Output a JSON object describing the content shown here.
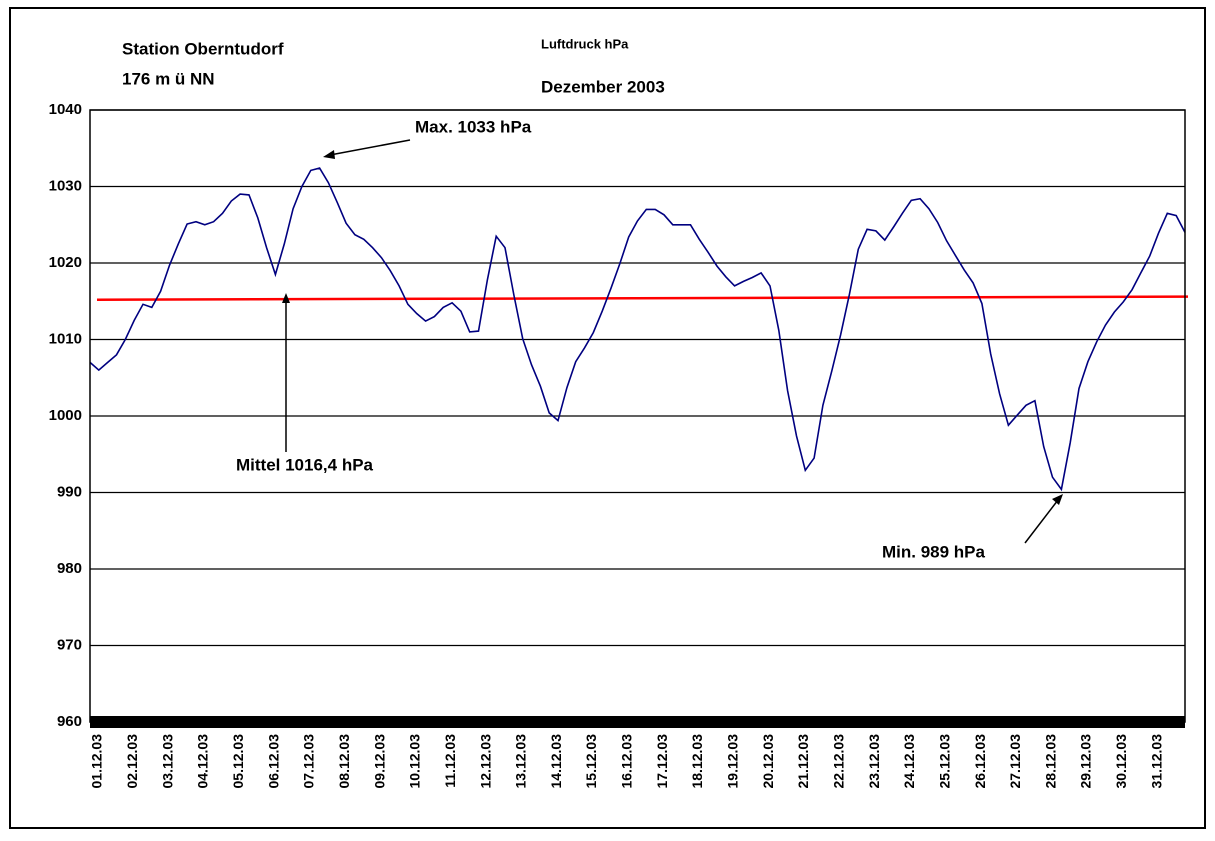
{
  "chart_data": {
    "type": "line",
    "title": "Luftdruck hPa",
    "subtitle": "Dezember 2003",
    "station": "Station Oberntudorf",
    "elevation": "176 m ü NN",
    "categories": [
      "01.12.03",
      null,
      null,
      null,
      "02.12.03",
      null,
      null,
      null,
      "03.12.03",
      null,
      null,
      null,
      "04.12.03",
      null,
      null,
      null,
      "05.12.03",
      null,
      null,
      null,
      "06.12.03",
      null,
      null,
      null,
      "07.12.03",
      null,
      null,
      null,
      "08.12.03",
      null,
      null,
      null,
      "09.12.03",
      null,
      null,
      null,
      "10.12.03",
      null,
      null,
      null,
      "11.12.03",
      null,
      null,
      null,
      "12.12.03",
      null,
      null,
      null,
      "13.12.03",
      null,
      null,
      null,
      "14.12.03",
      null,
      null,
      null,
      "15.12.03",
      null,
      null,
      null,
      "16.12.03",
      null,
      null,
      null,
      "17.12.03",
      null,
      null,
      null,
      "18.12.03",
      null,
      null,
      null,
      "19.12.03",
      null,
      null,
      null,
      "20.12.03",
      null,
      null,
      null,
      "21.12.03",
      null,
      null,
      null,
      "22.12.03",
      null,
      null,
      null,
      "23.12.03",
      null,
      null,
      null,
      "24.12.03",
      null,
      null,
      null,
      "25.12.03",
      null,
      null,
      null,
      "26.12.03",
      null,
      null,
      null,
      "27.12.03",
      null,
      null,
      null,
      "28.12.03",
      null,
      null,
      null,
      "29.12.03",
      null,
      null,
      null,
      "30.12.03",
      null,
      null,
      null,
      "31.12.03",
      null,
      null,
      null,
      null
    ],
    "series": [
      {
        "name": "Luftdruck",
        "color": "#000080",
        "values": [
          1007,
          1006,
          1007,
          1008,
          1010,
          1012.5,
          1014.6,
          1014.2,
          1016.3,
          1019.7,
          1022.5,
          1025.1,
          1025.4,
          1025,
          1025.4,
          1026.5,
          1028.1,
          1029,
          1028.9,
          1025.9,
          1022,
          1018.5,
          1022.5,
          1027.1,
          1030,
          1032.1,
          1032.4,
          1030.5,
          1027.9,
          1025.2,
          1023.7,
          1023.1,
          1022,
          1020.7,
          1019,
          1017,
          1014.6,
          1013.4,
          1012.4,
          1013,
          1014.2,
          1014.8,
          1013.7,
          1011,
          1011.1,
          1017.8,
          1023.5,
          1022,
          1015.8,
          1010.1,
          1006.7,
          1003.9,
          1000.4,
          999.4,
          1003.7,
          1007.1,
          1008.9,
          1010.9,
          1013.7,
          1016.7,
          1019.9,
          1023.4,
          1025.5,
          1027,
          1027,
          1026.3,
          1025,
          1025,
          1025,
          1023.1,
          1021.4,
          1019.6,
          1018.2,
          1017,
          1017.6,
          1018.1,
          1018.7,
          1017,
          1011.2,
          1003.3,
          997.4,
          992.9,
          994.5,
          1001.4,
          1005.9,
          1010.6,
          1015.9,
          1021.8,
          1024.4,
          1024.2,
          1023,
          1024.7,
          1026.5,
          1028.2,
          1028.4,
          1027.1,
          1025.3,
          1022.9,
          1021,
          1019.1,
          1017.4,
          1014.7,
          1008.1,
          1002.9,
          998.8,
          1000.1,
          1001.4,
          1002,
          996,
          992,
          990.4,
          996.5,
          1003.6,
          1007.1,
          1009.7,
          1011.9,
          1013.6,
          1014.9,
          1016.5,
          1018.7,
          1020.9,
          1023.9,
          1026.5,
          1026.2,
          1024
        ]
      }
    ],
    "mean_line": {
      "color": "#ff0000",
      "start": 1015.2,
      "end": 1015.6
    },
    "ylim": [
      960,
      1040
    ],
    "yticks": [
      960,
      970,
      980,
      990,
      1000,
      1010,
      1020,
      1030,
      1040
    ],
    "grid": true,
    "annotations": [
      {
        "text": "Max. 1033 hPa"
      },
      {
        "text": "Mittel 1016,4 hPa"
      },
      {
        "text": "Min. 989 hPa"
      }
    ]
  }
}
